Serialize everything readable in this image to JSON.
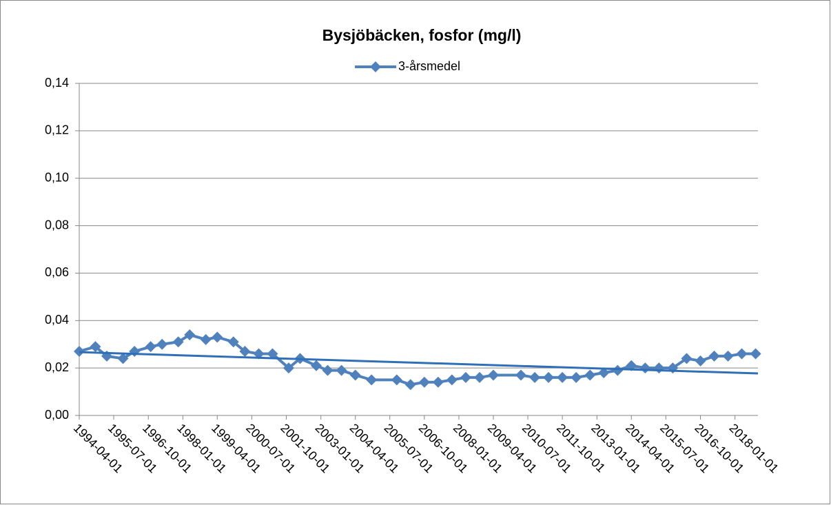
{
  "chart_data": {
    "type": "line",
    "title": "Bysjöbäcken, fosfor (mg/l)",
    "x": [
      "1994-04-01",
      "1994-11-01",
      "1995-04-01",
      "1995-11-01",
      "1996-04-01",
      "1996-11-01",
      "1997-04-01",
      "1997-11-01",
      "1998-04-01",
      "1998-11-01",
      "1999-04-01",
      "1999-11-01",
      "2000-04-01",
      "2000-10-01",
      "2001-04-01",
      "2001-11-01",
      "2002-04-01",
      "2002-11-01",
      "2003-04-01",
      "2003-10-01",
      "2004-04-01",
      "2004-11-01",
      "2005-10-01",
      "2006-04-01",
      "2006-10-01",
      "2007-04-01",
      "2007-10-01",
      "2008-04-01",
      "2008-10-01",
      "2009-04-01",
      "2010-04-01",
      "2010-10-01",
      "2011-04-01",
      "2011-10-01",
      "2012-04-01",
      "2012-10-01",
      "2013-04-01",
      "2013-10-01",
      "2014-04-01",
      "2014-10-01",
      "2015-04-01",
      "2015-10-01",
      "2016-04-01",
      "2016-10-01",
      "2017-04-01",
      "2017-10-01",
      "2018-04-01",
      "2018-10-01"
    ],
    "series": [
      {
        "name": "3-årsmedel",
        "color": "#4f81bd",
        "values": [
          0.027,
          0.029,
          0.025,
          0.024,
          0.027,
          0.029,
          0.03,
          0.031,
          0.034,
          0.032,
          0.033,
          0.031,
          0.027,
          0.026,
          0.026,
          0.02,
          0.024,
          0.021,
          0.019,
          0.019,
          0.017,
          0.015,
          0.015,
          0.013,
          0.014,
          0.014,
          0.015,
          0.016,
          0.016,
          0.017,
          0.017,
          0.016,
          0.016,
          0.016,
          0.016,
          0.017,
          0.018,
          0.019,
          0.021,
          0.02,
          0.02,
          0.02,
          0.024,
          0.023,
          0.025,
          0.025,
          0.026,
          0.026
        ]
      }
    ],
    "trendline": {
      "color": "#2e6fb7",
      "x": [
        "1994-04-01",
        "2018-11-01"
      ],
      "values": [
        0.0267,
        0.0177
      ]
    },
    "xlim": [
      "1994-04-01",
      "2018-11-01"
    ],
    "xticks": [
      "1994-04-01",
      "1995-07-01",
      "1996-10-01",
      "1998-01-01",
      "1999-04-01",
      "2000-07-01",
      "2001-10-01",
      "2003-01-01",
      "2004-04-01",
      "2005-07-01",
      "2006-10-01",
      "2008-01-01",
      "2009-04-01",
      "2010-07-01",
      "2011-10-01",
      "2013-01-01",
      "2014-04-01",
      "2015-07-01",
      "2016-10-01",
      "2018-01-01"
    ],
    "ylim": [
      0,
      0.14
    ],
    "yticks": [
      {
        "value": 0,
        "label": "0,00"
      },
      {
        "value": 0.02,
        "label": "0,02"
      },
      {
        "value": 0.04,
        "label": "0,04"
      },
      {
        "value": 0.06,
        "label": "0,06"
      },
      {
        "value": 0.08,
        "label": "0,08"
      },
      {
        "value": 0.1,
        "label": "0,10"
      },
      {
        "value": 0.12,
        "label": "0,12"
      },
      {
        "value": 0.14,
        "label": "0,14"
      }
    ],
    "grid": true,
    "legend": "top"
  }
}
